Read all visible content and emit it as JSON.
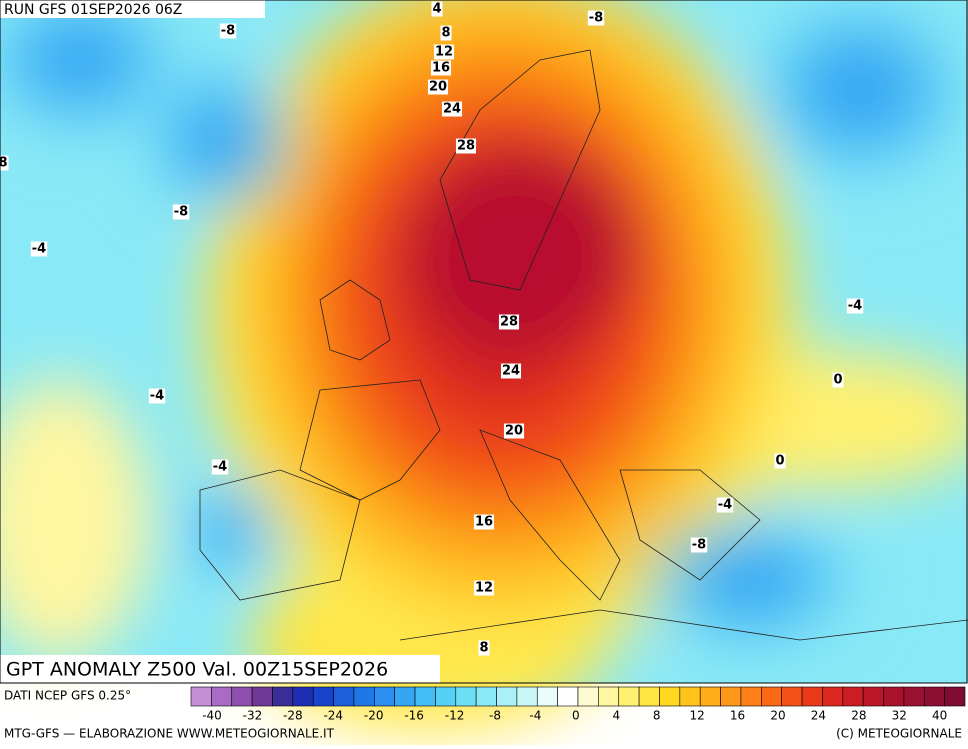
{
  "header": {
    "run": "RUN GFS 01SEP2026 06Z"
  },
  "title": "GPT ANOMALY Z500 Val. 00Z15SEP2026",
  "contour_labels": [
    4,
    -8,
    8,
    -8,
    12,
    16,
    20,
    24,
    28,
    8,
    -8,
    -4,
    28,
    -4,
    24,
    -4,
    0,
    20,
    -4,
    0,
    -4,
    16,
    -8,
    12,
    8
  ],
  "colorbar": {
    "source": "DATI NCEP GFS 0.25°",
    "ticks": [
      -40,
      -32,
      -28,
      -24,
      -20,
      -16,
      -12,
      -8,
      -4,
      0,
      4,
      8,
      12,
      16,
      20,
      24,
      28,
      32,
      40
    ],
    "colors": [
      "#c58fd8",
      "#a96bc4",
      "#8e4fae",
      "#6f3a98",
      "#3a2d9a",
      "#1f2fb5",
      "#1a44cc",
      "#1c5fdc",
      "#2077e6",
      "#2a8ff0",
      "#36a6f4",
      "#45bdf6",
      "#57d0f6",
      "#6cdff5",
      "#8ae9f6",
      "#aaf1f7",
      "#c9f7f9",
      "#e8fcfc",
      "#ffffff",
      "#fffbd0",
      "#fff6a0",
      "#fff070",
      "#ffe640",
      "#ffd820",
      "#ffc31a",
      "#ffad18",
      "#ff9818",
      "#ff8018",
      "#fb6818",
      "#f45018",
      "#ea3a1c",
      "#dc281e",
      "#cc1c24",
      "#bb1628",
      "#aa122c",
      "#9a1030",
      "#8c0e32",
      "#7e0c34"
    ]
  },
  "footer": {
    "left": "MTG-GFS — ELABORAZIONE WWW.METEOGIORNALE.IT",
    "right": "(C) METEOGIORNALE"
  }
}
